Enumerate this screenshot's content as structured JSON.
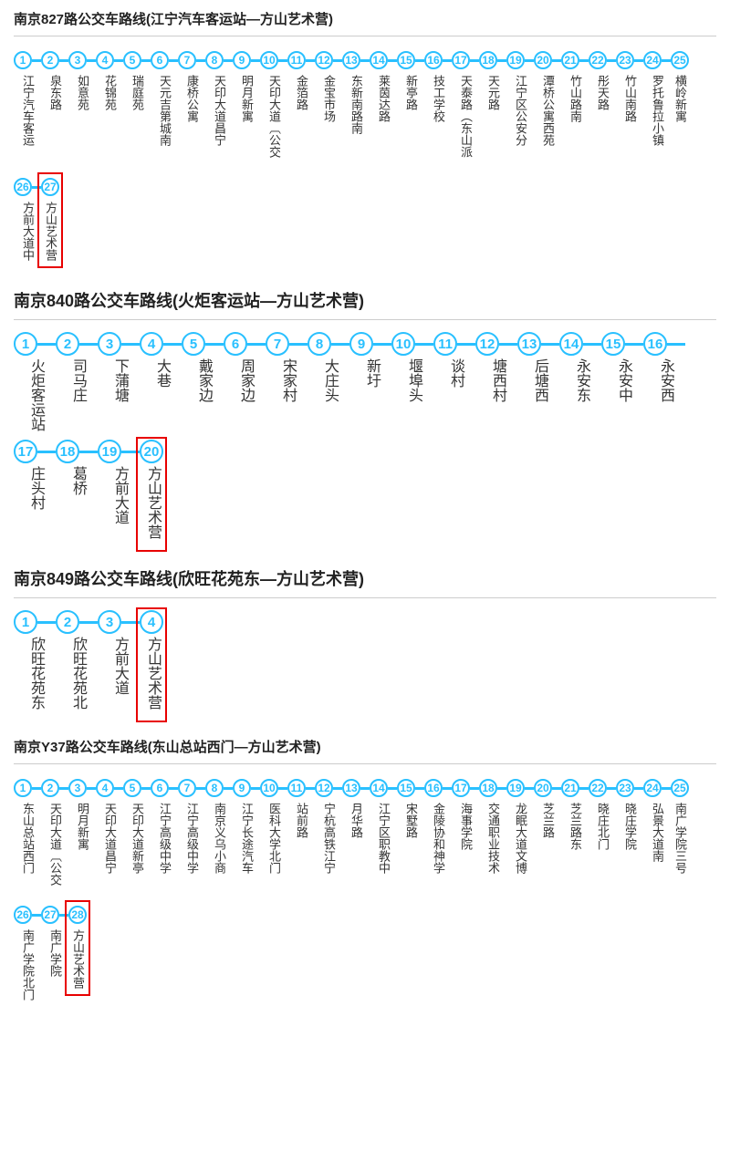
{
  "colors": {
    "circle_border": "#29c0ff",
    "circle_text": "#29c0ff",
    "connector": "#29c0ff",
    "label_text": "#333333",
    "title_text": "#222222",
    "highlight_border": "#e80000",
    "divider": "#cccccc",
    "background": "#ffffff"
  },
  "layout": {
    "stops_per_row": 25,
    "circle_size_small": 20,
    "circle_size_large": 26,
    "connector_width_small": 10,
    "connector_width_large": 20,
    "title_fontsize_small": 15,
    "title_fontsize_large": 18,
    "label_fontsize_small": 13,
    "label_fontsize_large": 16,
    "number_fontsize_small": 12,
    "number_fontsize_large": 15
  },
  "routes": [
    {
      "title": "南京827路公交车路线(江宁汽车客运站—方山艺术营)",
      "size": "small",
      "highlight_indices": [
        26
      ],
      "stops": [
        "江宁汽车客运",
        "泉东路",
        "如意苑",
        "花锦苑",
        "瑞庭苑",
        "天元吉第城南",
        "康桥公寓",
        "天印大道昌宁",
        "明月新寓",
        "天印大道︹公交",
        "金箔路",
        "金宝市场",
        "东新南路南",
        "莱茵达路",
        "新亭路",
        "技工学校",
        "天泰路︵东山派",
        "天元路",
        "江宁区公安分",
        "潭桥公寓西苑",
        "竹山路南",
        "彤天路",
        "竹山南路",
        "罗托鲁拉小镇",
        "横岭新寓",
        "方前大道中",
        "方山艺术营"
      ]
    },
    {
      "title": "南京840路公交车路线(火炬客运站—方山艺术营)",
      "size": "large",
      "highlight_indices": [
        19
      ],
      "stops": [
        "火炬客运站",
        "司马庄",
        "下蒲塘",
        "大巷",
        "戴家边",
        "周家边",
        "宋家村",
        "大庄头",
        "新圩",
        "堰埠头",
        "谈村",
        "塘西村",
        "后塘西",
        "永安东",
        "永安中",
        "永安西",
        "庄头村",
        "葛桥",
        "方前大道",
        "方山艺术营"
      ]
    },
    {
      "title": "南京849路公交车路线(欣旺花苑东—方山艺术营)",
      "size": "large",
      "highlight_indices": [
        3
      ],
      "stops": [
        "欣旺花苑东",
        "欣旺花苑北",
        "方前大道",
        "方山艺术营"
      ]
    },
    {
      "title": "南京Y37路公交车路线(东山总站西门—方山艺术营)",
      "size": "small",
      "highlight_indices": [
        27
      ],
      "stops": [
        "东山总站西门",
        "天印大道︹公交",
        "明月新寓",
        "天印大道昌宁",
        "天印大道新亭",
        "江宁高级中学",
        "江宁高级中学",
        "南京义乌小商",
        "江宁长途汽车",
        "医科大学北门",
        "站前路",
        "宁杭高铁江宁",
        "月华路",
        "江宁区职教中",
        "宋墅路",
        "金陵协和神学",
        "海事学院",
        "交通职业技术",
        "龙眠大道文博",
        "芝兰路",
        "芝兰路东",
        "晓庄北门",
        "晓庄学院",
        "弘景大道南",
        "南广学院三号",
        "南广学院北门",
        "南广学院",
        "方山艺术营"
      ]
    }
  ]
}
